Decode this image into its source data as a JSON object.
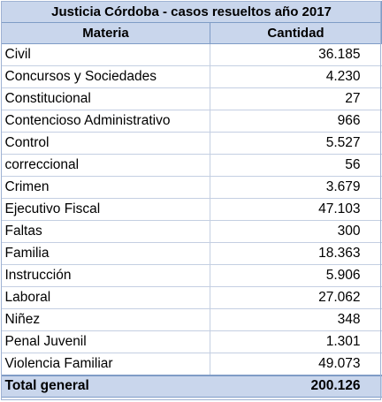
{
  "table": {
    "title": "Justicia Córdoba - casos resueltos año 2017",
    "headers": [
      "Materia",
      "Cantidad"
    ],
    "rows": [
      {
        "materia": "Civil",
        "cantidad": "36.185"
      },
      {
        "materia": "Concursos y Sociedades",
        "cantidad": "4.230"
      },
      {
        "materia": "Constitucional",
        "cantidad": "27"
      },
      {
        "materia": "Contencioso Administrativo",
        "cantidad": "966"
      },
      {
        "materia": "Control",
        "cantidad": "5.527"
      },
      {
        "materia": "correccional",
        "cantidad": "56"
      },
      {
        "materia": "Crimen",
        "cantidad": "3.679"
      },
      {
        "materia": "Ejecutivo Fiscal",
        "cantidad": "47.103"
      },
      {
        "materia": "Faltas",
        "cantidad": "300"
      },
      {
        "materia": "Familia",
        "cantidad": "18.363"
      },
      {
        "materia": "Instrucción",
        "cantidad": "5.906"
      },
      {
        "materia": "Laboral",
        "cantidad": "27.062"
      },
      {
        "materia": "Niñez",
        "cantidad": "348"
      },
      {
        "materia": "Penal Juvenil",
        "cantidad": "1.301"
      },
      {
        "materia": "Violencia Familiar",
        "cantidad": "49.073"
      }
    ],
    "total": {
      "label": "Total general",
      "value": "200.126"
    }
  }
}
